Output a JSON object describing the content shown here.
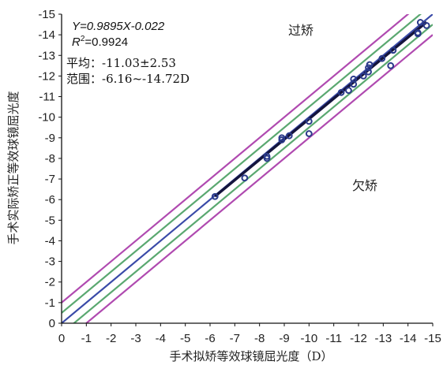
{
  "chart_data": {
    "type": "scatter",
    "title": "",
    "xlabel": "手术拟矫等效球镜屈光度（D）",
    "ylabel": "手术实际矫正等效球镜屈光度",
    "xlim": [
      0,
      -15
    ],
    "ylim": [
      0,
      -15
    ],
    "x_ticks": [
      "0",
      "-1",
      "-2",
      "-3",
      "-4",
      "-5",
      "-6",
      "-7",
      "-8",
      "-9",
      "-10",
      "-11",
      "-12",
      "-13",
      "-14",
      "-15"
    ],
    "y_ticks": [
      "0",
      "-1",
      "-2",
      "-3",
      "-4",
      "-5",
      "-6",
      "-7",
      "-8",
      "-9",
      "-10",
      "-11",
      "-12",
      "-13",
      "-14",
      "-15"
    ],
    "grid": false,
    "annotations": {
      "equation": "Y=0.9895X-0.022",
      "r2_prefix": "R",
      "r2_sup": "2",
      "r2_value": "=0.9924",
      "mean": "平均：-11.03±2.53",
      "range": "范围：-6.16~-14.72D",
      "over": "过矫",
      "under": "欠矫"
    },
    "reference_lines": [
      {
        "offset": 0,
        "color": "#3a4aa8"
      },
      {
        "offset": 0.5,
        "color": "#5aa870"
      },
      {
        "offset": -0.5,
        "color": "#5aa870"
      },
      {
        "offset": 1,
        "color": "#b04ab0"
      },
      {
        "offset": -1,
        "color": "#b04ab0"
      }
    ],
    "regression": {
      "slope": 0.9895,
      "intercept": -0.022,
      "color": "#14143c"
    },
    "point_color": "#2a3a8a",
    "points": [
      [
        -6.2,
        -6.15
      ],
      [
        -7.4,
        -7.05
      ],
      [
        -8.3,
        -8.0
      ],
      [
        -8.3,
        -8.1
      ],
      [
        -8.9,
        -8.9
      ],
      [
        -8.9,
        -9.0
      ],
      [
        -9.2,
        -9.1
      ],
      [
        -10.0,
        -9.2
      ],
      [
        -10.0,
        -9.8
      ],
      [
        -11.3,
        -11.2
      ],
      [
        -11.6,
        -11.3
      ],
      [
        -11.8,
        -11.6
      ],
      [
        -11.8,
        -11.85
      ],
      [
        -12.2,
        -12.0
      ],
      [
        -12.4,
        -12.2
      ],
      [
        -12.4,
        -12.4
      ],
      [
        -12.45,
        -12.55
      ],
      [
        -12.95,
        -12.85
      ],
      [
        -13.3,
        -12.5
      ],
      [
        -13.4,
        -13.25
      ],
      [
        -14.4,
        -14.1
      ],
      [
        -14.5,
        -14.6
      ],
      [
        -14.4,
        -14.05
      ],
      [
        -14.75,
        -14.45
      ]
    ]
  }
}
